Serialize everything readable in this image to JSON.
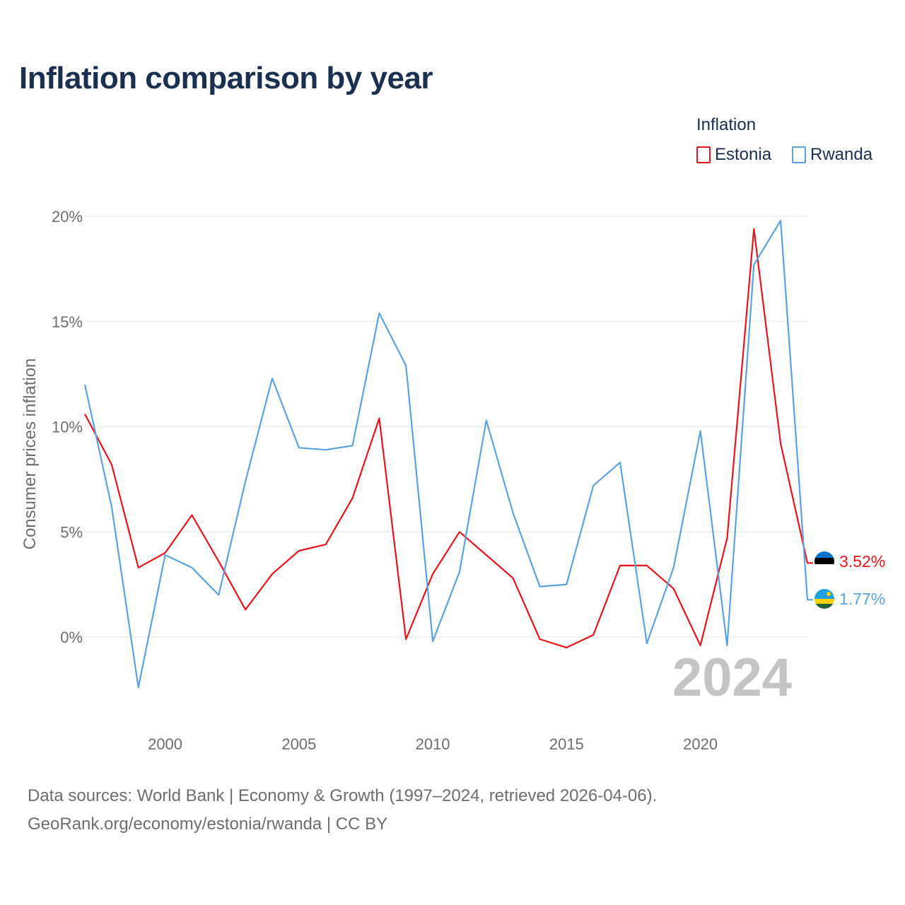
{
  "title": "Inflation comparison by year",
  "legend": {
    "title": "Inflation",
    "items": [
      {
        "label": "Estonia",
        "color": "#e8141c"
      },
      {
        "label": "Rwanda",
        "color": "#5ba3e0"
      }
    ]
  },
  "year_watermark": "2024",
  "source": {
    "line1": "Data sources: World Bank | Economy & Growth (1997–2024, retrieved 2026-04-06).",
    "line2": "GeoRank.org/economy/estonia/rwanda | CC BY"
  },
  "chart_data": {
    "type": "line",
    "title": "Inflation comparison by year",
    "xlabel": "",
    "ylabel": "Consumer prices inflation",
    "xlim": [
      1997,
      2024
    ],
    "ylim": [
      -4,
      20
    ],
    "xticks": [
      2000,
      2005,
      2010,
      2015,
      2020
    ],
    "xtick_labels": [
      "2000",
      "2005",
      "2010",
      "2015",
      "2020"
    ],
    "yticks": [
      0,
      5,
      10,
      15,
      20
    ],
    "ytick_labels": [
      "0%",
      "5%",
      "10%",
      "15%",
      "20%"
    ],
    "grid": true,
    "legend_position": "top-right",
    "x": [
      1997,
      1998,
      1999,
      2000,
      2001,
      2002,
      2003,
      2004,
      2005,
      2006,
      2007,
      2008,
      2009,
      2010,
      2011,
      2012,
      2013,
      2014,
      2015,
      2016,
      2017,
      2018,
      2019,
      2020,
      2021,
      2022,
      2023,
      2024
    ],
    "series": [
      {
        "name": "Estonia",
        "color": "#e8141c",
        "values": [
          10.6,
          8.2,
          3.3,
          4.0,
          5.8,
          3.6,
          1.3,
          3.0,
          4.1,
          4.4,
          6.6,
          10.4,
          -0.1,
          3.0,
          5.0,
          3.9,
          2.8,
          -0.1,
          -0.5,
          0.1,
          3.4,
          3.4,
          2.3,
          -0.4,
          4.7,
          19.4,
          9.2,
          3.52
        ],
        "end_label": "3.52%"
      },
      {
        "name": "Rwanda",
        "color": "#5ba3e0",
        "values": [
          12.0,
          6.2,
          -2.4,
          3.9,
          3.3,
          2.0,
          7.4,
          12.3,
          9.0,
          8.9,
          9.1,
          15.4,
          12.9,
          -0.2,
          3.1,
          10.3,
          5.9,
          2.4,
          2.5,
          7.2,
          8.3,
          -0.3,
          3.3,
          9.8,
          -0.4,
          17.7,
          19.8,
          1.77
        ],
        "end_label": "1.77%"
      }
    ]
  }
}
